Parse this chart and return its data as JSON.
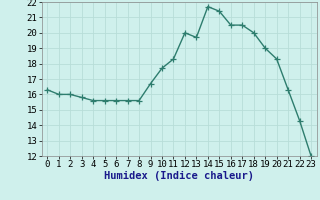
{
  "xlabel": "Humidex (Indice chaleur)",
  "x": [
    0,
    1,
    2,
    3,
    4,
    5,
    6,
    7,
    8,
    9,
    10,
    11,
    12,
    13,
    14,
    15,
    16,
    17,
    18,
    19,
    20,
    21,
    22,
    23
  ],
  "y": [
    16.3,
    16.0,
    16.0,
    15.8,
    15.6,
    15.6,
    15.6,
    15.6,
    15.6,
    16.7,
    17.7,
    18.3,
    20.0,
    19.7,
    21.7,
    21.4,
    20.5,
    20.5,
    20.0,
    19.0,
    18.3,
    16.3,
    14.3,
    12.0
  ],
  "line_color": "#2e7d6e",
  "marker": "+",
  "bg_color": "#cff0ec",
  "grid_color": "#b8ddd8",
  "ylim": [
    12,
    22
  ],
  "yticks": [
    12,
    13,
    14,
    15,
    16,
    17,
    18,
    19,
    20,
    21,
    22
  ],
  "xlim": [
    -0.5,
    23.5
  ],
  "xticks": [
    0,
    1,
    2,
    3,
    4,
    5,
    6,
    7,
    8,
    9,
    10,
    11,
    12,
    13,
    14,
    15,
    16,
    17,
    18,
    19,
    20,
    21,
    22,
    23
  ],
  "tick_fontsize": 6.5,
  "label_fontsize": 7.5,
  "linewidth": 1.0,
  "markersize": 4,
  "xlabel_color": "#1a1a8c"
}
